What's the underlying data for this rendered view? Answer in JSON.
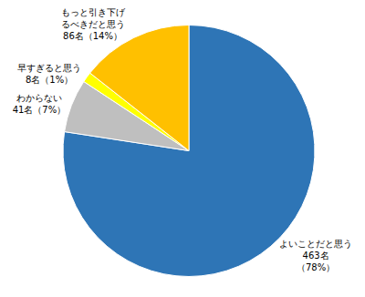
{
  "chart_data": {
    "type": "pie",
    "categories": [
      "よいことだと思う\n463名\n（78%）",
      "わからない\n41名（7%）",
      "早すぎると思う\n8名（1%）",
      "もっと引き下げ\nるべきだと思う\n86名（14%）"
    ],
    "values": [
      463,
      41,
      8,
      86
    ],
    "colors": [
      "#2E75B6",
      "#BFBFBF",
      "#FFFF00",
      "#FFC000"
    ]
  }
}
